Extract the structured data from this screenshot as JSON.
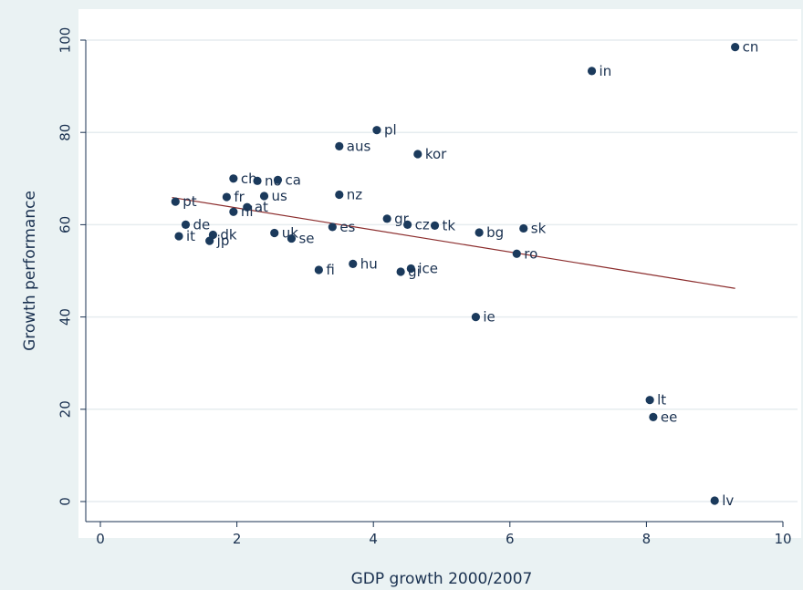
{
  "chart_data": {
    "type": "scatter",
    "title": "",
    "xlabel": "GDP growth 2000/2007",
    "ylabel": "Growth performance",
    "xlim": [
      0,
      10
    ],
    "ylim": [
      0,
      100
    ],
    "x_ticks": [
      "0",
      "2",
      "4",
      "6",
      "8",
      "10"
    ],
    "y_ticks": [
      "0",
      "20",
      "40",
      "60",
      "80",
      "100"
    ],
    "grid": "horizontal",
    "colors": {
      "points": "#1b3a5c",
      "fit_line": "#8b2c2c",
      "gridline": "#e6ecef",
      "plot_bg": "#ffffff",
      "outer_bg": "#eaf2f3",
      "text": "#1a3150"
    },
    "points": [
      {
        "label": "cn",
        "x": 9.3,
        "y": 98.5
      },
      {
        "label": "in",
        "x": 7.2,
        "y": 93.3
      },
      {
        "label": "pl",
        "x": 4.05,
        "y": 80.5
      },
      {
        "label": "aus",
        "x": 3.5,
        "y": 77.0
      },
      {
        "label": "kor",
        "x": 4.65,
        "y": 75.3
      },
      {
        "label": "ch",
        "x": 1.95,
        "y": 70.0
      },
      {
        "label": "no",
        "x": 2.3,
        "y": 69.5
      },
      {
        "label": "ca",
        "x": 2.6,
        "y": 69.7
      },
      {
        "label": "fr",
        "x": 1.85,
        "y": 66.0
      },
      {
        "label": "us",
        "x": 2.4,
        "y": 66.2
      },
      {
        "label": "nz",
        "x": 3.5,
        "y": 66.5
      },
      {
        "label": "pt",
        "x": 1.1,
        "y": 65.0
      },
      {
        "label": "at",
        "x": 2.15,
        "y": 63.8
      },
      {
        "label": "nl",
        "x": 1.95,
        "y": 62.8
      },
      {
        "label": "gr",
        "x": 4.2,
        "y": 61.3
      },
      {
        "label": "de",
        "x": 1.25,
        "y": 60.0
      },
      {
        "label": "cz",
        "x": 4.5,
        "y": 60.0
      },
      {
        "label": "tk",
        "x": 4.9,
        "y": 59.8
      },
      {
        "label": "es",
        "x": 3.4,
        "y": 59.5
      },
      {
        "label": "sk",
        "x": 6.2,
        "y": 59.2
      },
      {
        "label": "bg",
        "x": 5.55,
        "y": 58.3
      },
      {
        "label": "uk",
        "x": 2.55,
        "y": 58.2
      },
      {
        "label": "dk",
        "x": 1.65,
        "y": 57.8
      },
      {
        "label": "it",
        "x": 1.15,
        "y": 57.5
      },
      {
        "label": "se",
        "x": 2.8,
        "y": 57.0
      },
      {
        "label": "jp",
        "x": 1.6,
        "y": 56.5
      },
      {
        "label": "ro",
        "x": 6.1,
        "y": 53.7
      },
      {
        "label": "hu",
        "x": 3.7,
        "y": 51.5
      },
      {
        "label": "ice",
        "x": 4.55,
        "y": 50.5
      },
      {
        "label": "fi",
        "x": 3.2,
        "y": 50.2
      },
      {
        "label": "gi",
        "x": 4.4,
        "y": 49.8
      },
      {
        "label": "ie",
        "x": 5.5,
        "y": 40.0
      },
      {
        "label": "lt",
        "x": 8.05,
        "y": 22.0
      },
      {
        "label": "ee",
        "x": 8.1,
        "y": 18.3
      },
      {
        "label": "lv",
        "x": 9.0,
        "y": 0.2
      }
    ],
    "fit_line": {
      "x": [
        1.05,
        9.3
      ],
      "y": [
        65.9,
        46.2
      ]
    }
  }
}
